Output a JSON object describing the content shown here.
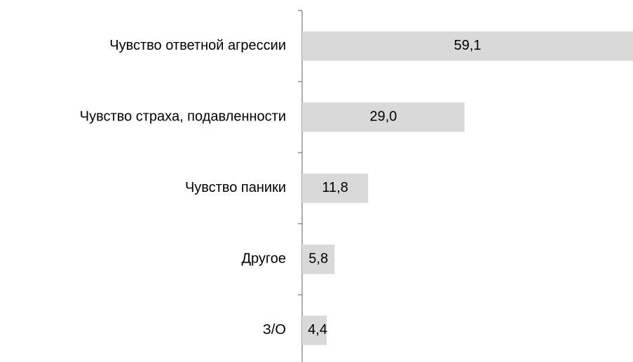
{
  "chart_data": {
    "type": "bar",
    "orientation": "horizontal",
    "categories": [
      "Чувство ответной агрессии",
      "Чувство страха, подавленности",
      "Чувство паники",
      "Другое",
      "З/О"
    ],
    "values": [
      59.1,
      29.0,
      11.8,
      5.8,
      4.4
    ],
    "value_labels": [
      "59,1",
      "29,0",
      "11,8",
      "5,8",
      "4,4"
    ],
    "title": "",
    "xlabel": "",
    "ylabel": "",
    "xlim": [
      0,
      59.1
    ],
    "grid": false,
    "legend": "none",
    "colors": {
      "bar": "#d9d9d9",
      "axis": "#808080",
      "text": "#000000"
    }
  }
}
